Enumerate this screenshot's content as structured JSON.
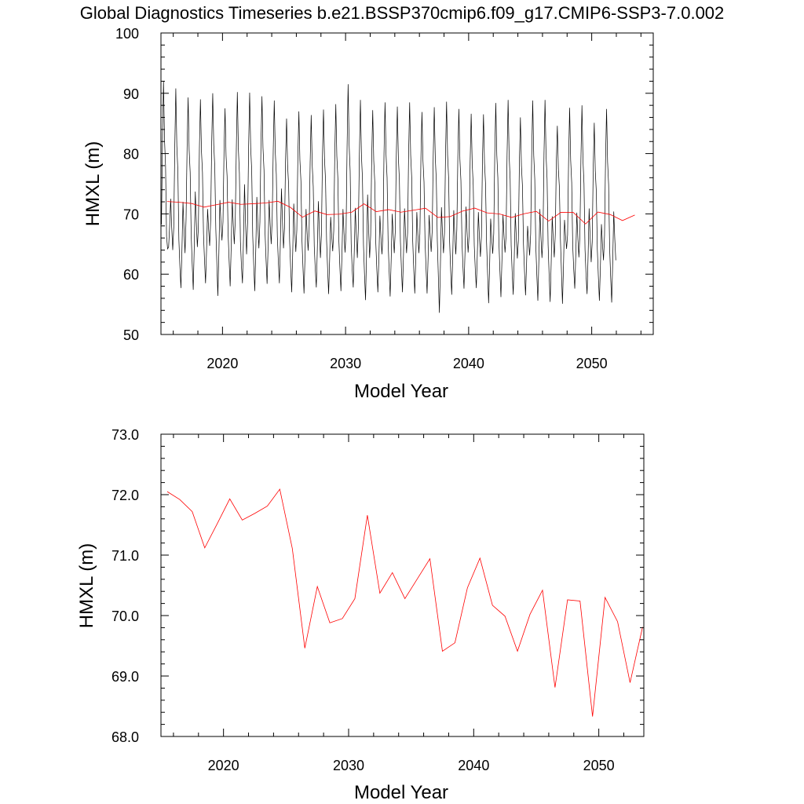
{
  "figure": {
    "title": "Global Diagnostics Timeseries b.e21.BSSP370cmip6.f09_g17.CMIP6-SSP3-7.0.002"
  },
  "chart_data": [
    {
      "type": "line",
      "xlabel": "Model Year",
      "ylabel": "HMXL (m)",
      "xlim": [
        2015,
        2055
      ],
      "ylim": [
        50,
        100
      ],
      "xticks": [
        2020,
        2030,
        2040,
        2050
      ],
      "xtick_labels": [
        "2020",
        "2030",
        "2040",
        "2050"
      ],
      "yticks": [
        50,
        60,
        70,
        80,
        90,
        100
      ],
      "ytick_labels": [
        "50",
        "60",
        "70",
        "80",
        "90",
        "100"
      ],
      "series": [
        {
          "color": "#000000",
          "kind": "monthly",
          "x_start": 2015.04,
          "annual_max": [
            92.0,
            90.8,
            89.3,
            89.0,
            90.0,
            87.5,
            90.2,
            90.1,
            89.5,
            88.8,
            85.8,
            87.0,
            86.4,
            87.3,
            88.2,
            91.5,
            88.9,
            87.2,
            88.5,
            87.8,
            88.5,
            86.9,
            87.7,
            88.6,
            87.4,
            86.6,
            86.5,
            88.4,
            88.9,
            86.0,
            88.8,
            88.9,
            84.6,
            87.6,
            88.0,
            85.1,
            87.4
          ],
          "annual_min": [
            64.5,
            57.7,
            57.4,
            58.5,
            56.4,
            58.0,
            58.5,
            57.2,
            58.4,
            58.5,
            57.0,
            56.8,
            57.8,
            56.7,
            57.2,
            57.8,
            55.7,
            57.0,
            56.3,
            57.0,
            56.8,
            56.8,
            53.6,
            56.6,
            57.6,
            57.7,
            55.2,
            56.2,
            56.6,
            56.5,
            55.6,
            55.4,
            55.1,
            57.6,
            56.7,
            55.6,
            55.3
          ],
          "secondary_peak": [
            72.5,
            72.0,
            73.7,
            70.8,
            72.3,
            72.4,
            74.9,
            72.8,
            72.3,
            74.2,
            71.7,
            70.8,
            72.1,
            69.5,
            70.8,
            71.0,
            73.2,
            69.7,
            70.0,
            70.9,
            70.3,
            69.8,
            71.1,
            70.6,
            71.2,
            70.3,
            69.2,
            69.9,
            70.1,
            68.0,
            70.8,
            69.6,
            69.0,
            70.2,
            70.9,
            68.3,
            70.4
          ],
          "secondary_trough": [
            64.0,
            63.5,
            64.5,
            64.7,
            65.6,
            65.0,
            63.3,
            64.3,
            65.0,
            64.3,
            63.7,
            63.9,
            62.7,
            63.8,
            63.6,
            62.7,
            62.7,
            63.3,
            63.5,
            63.5,
            63.5,
            63.7,
            63.5,
            63.3,
            63.6,
            62.9,
            63.4,
            63.6,
            62.6,
            63.1,
            62.7,
            62.8,
            64.2,
            62.8,
            62.0,
            62.3,
            62.3
          ]
        },
        {
          "color": "#ff0000",
          "kind": "annual_mean",
          "x": [
            2015.5,
            2016.5,
            2017.5,
            2018.5,
            2019.5,
            2020.5,
            2021.5,
            2022.5,
            2023.5,
            2024.5,
            2025.5,
            2026.5,
            2027.5,
            2028.5,
            2029.5,
            2030.5,
            2031.5,
            2032.5,
            2033.5,
            2034.5,
            2035.5,
            2036.5,
            2037.5,
            2038.5,
            2039.5,
            2040.5,
            2041.5,
            2042.5,
            2043.5,
            2044.5,
            2045.5,
            2046.5,
            2047.5,
            2048.5,
            2049.5,
            2050.5,
            2051.5,
            2052.5,
            2053.5
          ],
          "y": [
            72.05,
            71.92,
            71.72,
            71.12,
            71.52,
            71.93,
            71.58,
            71.69,
            71.81,
            72.09,
            71.11,
            69.46,
            70.48,
            69.88,
            69.95,
            70.28,
            71.66,
            70.37,
            70.71,
            70.28,
            70.61,
            70.94,
            69.41,
            69.55,
            70.46,
            70.95,
            70.17,
            69.99,
            69.41,
            70.02,
            70.42,
            68.81,
            70.26,
            70.24,
            68.33,
            70.3,
            69.9,
            68.89,
            69.81
          ]
        }
      ]
    },
    {
      "type": "line",
      "xlabel": "Model Year",
      "ylabel": "HMXL (m)",
      "xlim": [
        2015,
        2053.6
      ],
      "ylim": [
        68.0,
        73.0
      ],
      "xticks": [
        2020,
        2030,
        2040,
        2050
      ],
      "xtick_labels": [
        "2020",
        "2030",
        "2040",
        "2050"
      ],
      "yticks": [
        68,
        69,
        70,
        71,
        72,
        73
      ],
      "ytick_labels": [
        "68.0",
        "69.0",
        "70.0",
        "71.0",
        "72.0",
        "73.0"
      ],
      "series": [
        {
          "color": "#ff0000",
          "kind": "annual_mean",
          "x": [
            2015.5,
            2016.5,
            2017.5,
            2018.5,
            2019.5,
            2020.5,
            2021.5,
            2022.5,
            2023.5,
            2024.5,
            2025.5,
            2026.5,
            2027.5,
            2028.5,
            2029.5,
            2030.5,
            2031.5,
            2032.5,
            2033.5,
            2034.5,
            2035.5,
            2036.5,
            2037.5,
            2038.5,
            2039.5,
            2040.5,
            2041.5,
            2042.5,
            2043.5,
            2044.5,
            2045.5,
            2046.5,
            2047.5,
            2048.5,
            2049.5,
            2050.5,
            2051.5,
            2052.5,
            2053.5
          ],
          "y": [
            72.05,
            71.92,
            71.72,
            71.12,
            71.52,
            71.93,
            71.58,
            71.69,
            71.81,
            72.09,
            71.11,
            69.46,
            70.48,
            69.88,
            69.95,
            70.28,
            71.66,
            70.37,
            70.71,
            70.28,
            70.61,
            70.94,
            69.41,
            69.55,
            70.46,
            70.95,
            70.17,
            69.99,
            69.41,
            70.02,
            70.42,
            68.81,
            70.26,
            70.24,
            68.33,
            70.3,
            69.9,
            68.89,
            69.81
          ]
        }
      ]
    }
  ]
}
